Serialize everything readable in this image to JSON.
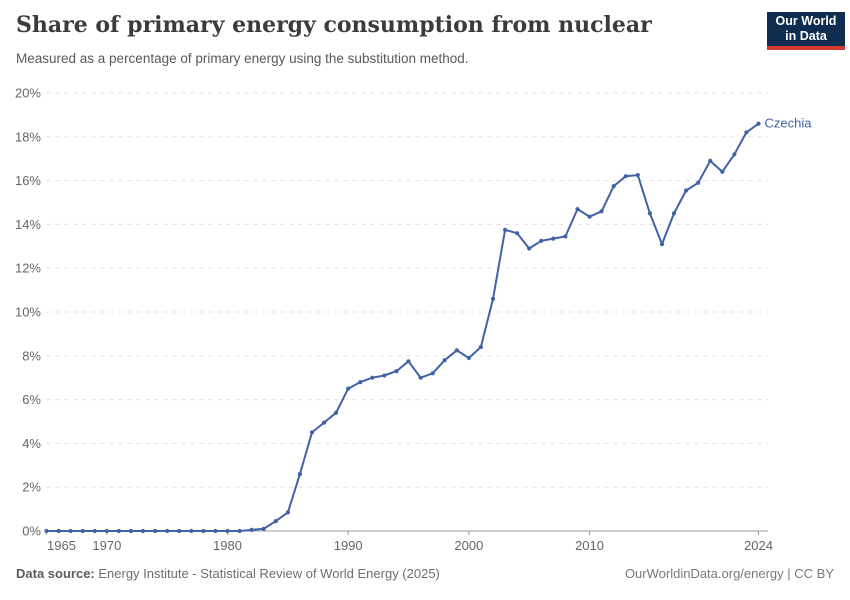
{
  "header": {
    "title": "Share of primary energy consumption from nuclear",
    "subtitle": "Measured as a percentage of primary energy using the substitution method.",
    "logo": {
      "line1": "Our World",
      "line2": "in Data"
    }
  },
  "footer": {
    "source_label": "Data source:",
    "source_text": " Energy Institute - Statistical Review of World Energy (2025)",
    "credit": "OurWorldinData.org/energy | CC BY"
  },
  "colors": {
    "line": "#4162a6",
    "entity_label": "#4162a6",
    "gridline": "#e0e0e0",
    "axis": "#9a9a9a",
    "tick_label": "#666666",
    "logo_bg": "#0f2d4e",
    "logo_stripe": "#d5392f"
  },
  "chart_data": {
    "type": "line",
    "title": "Share of primary energy consumption from nuclear",
    "subtitle": "Measured as a percentage of primary energy using the substitution method.",
    "entity_label": "Czechia",
    "xlabel": "",
    "ylabel": "",
    "ylim": [
      0,
      20
    ],
    "yticks": [
      0,
      2,
      4,
      6,
      8,
      10,
      12,
      14,
      16,
      18,
      20
    ],
    "ytick_suffix": "%",
    "xticks": [
      1965,
      1970,
      1980,
      1990,
      2000,
      2010,
      2024
    ],
    "grid": true,
    "legend_position": "end-of-line",
    "x": [
      1965,
      1966,
      1967,
      1968,
      1969,
      1970,
      1971,
      1972,
      1973,
      1974,
      1975,
      1976,
      1977,
      1978,
      1979,
      1980,
      1981,
      1982,
      1983,
      1984,
      1985,
      1986,
      1987,
      1988,
      1989,
      1990,
      1991,
      1992,
      1993,
      1994,
      1995,
      1996,
      1997,
      1998,
      1999,
      2000,
      2001,
      2002,
      2003,
      2004,
      2005,
      2006,
      2007,
      2008,
      2009,
      2010,
      2011,
      2012,
      2013,
      2014,
      2015,
      2016,
      2017,
      2018,
      2019,
      2020,
      2021,
      2022,
      2023,
      2024
    ],
    "series": [
      {
        "name": "Czechia",
        "values": [
          0,
          0,
          0,
          0,
          0,
          0,
          0,
          0,
          0,
          0,
          0,
          0,
          0,
          0,
          0,
          0,
          0,
          0.05,
          0.1,
          0.45,
          0.85,
          2.6,
          4.5,
          4.95,
          5.4,
          6.5,
          6.8,
          7.0,
          7.1,
          7.3,
          7.75,
          7.0,
          7.2,
          7.8,
          8.25,
          7.9,
          8.4,
          10.6,
          13.75,
          13.6,
          12.9,
          13.25,
          13.35,
          13.45,
          14.7,
          14.35,
          14.6,
          15.75,
          16.2,
          16.25,
          14.5,
          13.1,
          14.5,
          15.55,
          15.9,
          16.9,
          16.4,
          17.2,
          18.2,
          18.6
        ]
      }
    ]
  }
}
